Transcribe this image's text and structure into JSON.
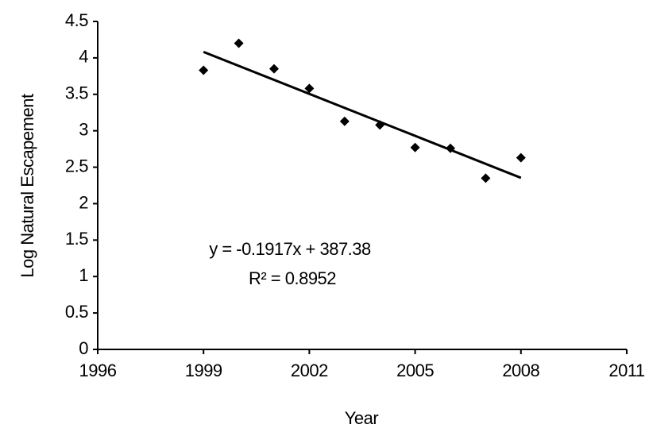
{
  "chart_data": {
    "type": "scatter",
    "x_label": "Year",
    "y_label": "Log Natural Escapement",
    "x": [
      1999,
      2000,
      2001,
      2002,
      2003,
      2004,
      2005,
      2006,
      2007,
      2008
    ],
    "series": [
      {
        "name": null,
        "color": "#000000",
        "values": [
          3.83,
          4.2,
          3.85,
          3.58,
          3.13,
          3.08,
          2.77,
          2.76,
          2.35,
          2.63
        ]
      }
    ],
    "trendline": "linear",
    "annotations": [
      "y = -0.1917x + 387.38",
      "R² = 0.8952"
    ],
    "xlim": [
      1996,
      2011
    ],
    "xticks": [
      1996,
      1999,
      2002,
      2005,
      2008,
      2011
    ],
    "ylim": [
      0,
      4.5
    ],
    "yticks": [
      0,
      0.5,
      1,
      1.5,
      2,
      2.5,
      3,
      3.5,
      4,
      4.5
    ],
    "grid": false
  }
}
